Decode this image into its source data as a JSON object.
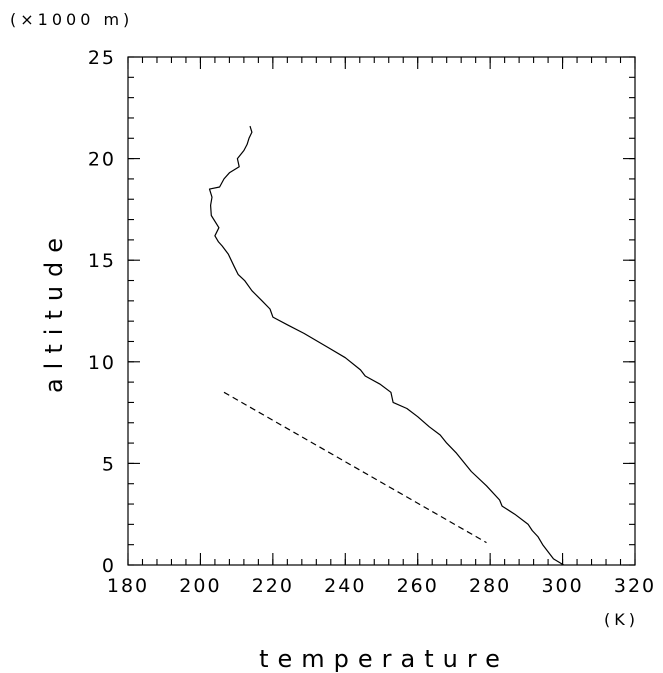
{
  "chart_data": {
    "type": "line",
    "xlabel": "temperature",
    "ylabel": "altitude",
    "x_unit": "(K)",
    "y_unit": "(×1000 m)",
    "xlim": [
      180,
      320
    ],
    "ylim": [
      0,
      25
    ],
    "x_major_ticks": [
      180,
      200,
      220,
      240,
      260,
      280,
      300,
      320
    ],
    "y_major_ticks": [
      0,
      5,
      10,
      15,
      20,
      25
    ],
    "x_minor_step": 4,
    "y_minor_step": 1,
    "grid": false,
    "series": [
      {
        "style": "solid",
        "points": [
          [
            300.3,
            0.0
          ],
          [
            297.5,
            0.3
          ],
          [
            294.5,
            1.0
          ],
          [
            293.2,
            1.4
          ],
          [
            291.6,
            1.7
          ],
          [
            290.5,
            2.0
          ],
          [
            286.8,
            2.5
          ],
          [
            283.3,
            2.9
          ],
          [
            282.6,
            3.2
          ],
          [
            279.0,
            3.9
          ],
          [
            274.8,
            4.6
          ],
          [
            270.7,
            5.5
          ],
          [
            268.0,
            6.0
          ],
          [
            266.2,
            6.4
          ],
          [
            263.2,
            6.8
          ],
          [
            260.0,
            7.3
          ],
          [
            257.0,
            7.7
          ],
          [
            253.2,
            8.0
          ],
          [
            252.6,
            8.5
          ],
          [
            249.6,
            8.9
          ],
          [
            245.5,
            9.3
          ],
          [
            244.2,
            9.6
          ],
          [
            240.0,
            10.2
          ],
          [
            235.3,
            10.7
          ],
          [
            228.6,
            11.4
          ],
          [
            224.2,
            11.8
          ],
          [
            220.0,
            12.2
          ],
          [
            219.2,
            12.6
          ],
          [
            217.0,
            13.0
          ],
          [
            214.2,
            13.5
          ],
          [
            212.2,
            14.0
          ],
          [
            210.4,
            14.3
          ],
          [
            209.3,
            14.7
          ],
          [
            207.7,
            15.3
          ],
          [
            206.0,
            15.7
          ],
          [
            205.0,
            15.9
          ],
          [
            204.0,
            16.2
          ],
          [
            205.1,
            16.6
          ],
          [
            203.0,
            17.2
          ],
          [
            202.8,
            17.7
          ],
          [
            203.2,
            18.1
          ],
          [
            202.5,
            18.5
          ],
          [
            205.3,
            18.6
          ],
          [
            206.5,
            19.0
          ],
          [
            208.0,
            19.3
          ],
          [
            210.7,
            19.6
          ],
          [
            210.2,
            20.0
          ],
          [
            212.0,
            20.4
          ],
          [
            212.9,
            20.7
          ],
          [
            213.4,
            21.0
          ],
          [
            214.2,
            21.3
          ],
          [
            213.7,
            21.6
          ]
        ]
      },
      {
        "style": "dashed",
        "points": [
          [
            206.5,
            8.5
          ],
          [
            279.0,
            1.1
          ]
        ]
      }
    ]
  }
}
